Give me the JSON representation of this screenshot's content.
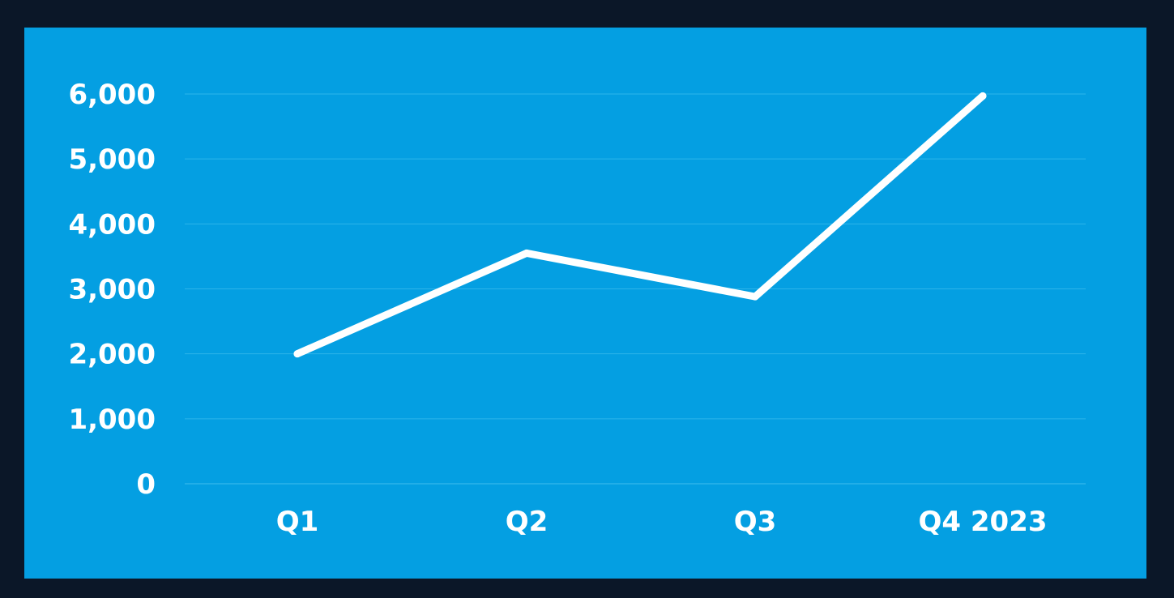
{
  "chart_data": {
    "type": "line",
    "categories": [
      "Q1",
      "Q2",
      "Q3",
      "Q4 2023"
    ],
    "series": [
      {
        "values": [
          2000,
          3550,
          2880,
          5970
        ]
      }
    ],
    "y_ticks": [
      "0",
      "1,000",
      "2,000",
      "3,000",
      "4,000",
      "5,000",
      "6,000"
    ],
    "ylim": [
      0,
      6000
    ],
    "grid": true,
    "xlabel": "",
    "ylabel": "",
    "title": ""
  },
  "colors": {
    "page_background": "#0b1728",
    "panel_background": "#049fe2",
    "line": "#ffffff",
    "gridline": "#2cb4ea",
    "text": "#ffffff"
  }
}
